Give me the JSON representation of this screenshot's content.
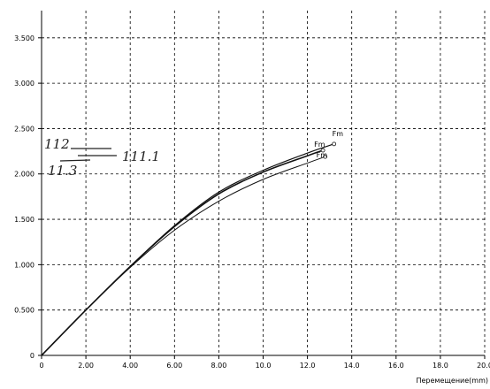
{
  "chart_data": {
    "type": "line",
    "title": "",
    "xlabel": "Перемещение(mm)",
    "ylabel": "",
    "xlim": [
      0,
      20
    ],
    "ylim": [
      0,
      3.8
    ],
    "grid": true,
    "x_ticks": [
      "0",
      "2.00",
      "4.00",
      "6.00",
      "8.00",
      "10.0",
      "12.0",
      "14.0",
      "16.0",
      "18.0",
      "20.0"
    ],
    "y_ticks": [
      "0",
      "0.500",
      "1.000",
      "1.500",
      "2.000",
      "2.500",
      "3.000",
      "3.500"
    ],
    "series": [
      {
        "values": [
          [
            0,
            0
          ],
          [
            2,
            0.5
          ],
          [
            4,
            0.98
          ],
          [
            6,
            1.42
          ],
          [
            8,
            1.78
          ],
          [
            10,
            2.02
          ],
          [
            12,
            2.2
          ],
          [
            12.7,
            2.26
          ]
        ],
        "end_label": "Fm"
      },
      {
        "values": [
          [
            0,
            0
          ],
          [
            2,
            0.5
          ],
          [
            4,
            0.98
          ],
          [
            6,
            1.43
          ],
          [
            8,
            1.8
          ],
          [
            10,
            2.04
          ],
          [
            12,
            2.23
          ],
          [
            13.2,
            2.33
          ]
        ],
        "end_label": "Fm"
      },
      {
        "values": [
          [
            0,
            0
          ],
          [
            2,
            0.5
          ],
          [
            4,
            0.97
          ],
          [
            6,
            1.38
          ],
          [
            8,
            1.7
          ],
          [
            10,
            1.94
          ],
          [
            12,
            2.12
          ],
          [
            12.8,
            2.19
          ]
        ],
        "end_label": "Fm"
      }
    ],
    "handwritten_annotations": [
      "112",
      "111.1",
      "11.3"
    ]
  }
}
